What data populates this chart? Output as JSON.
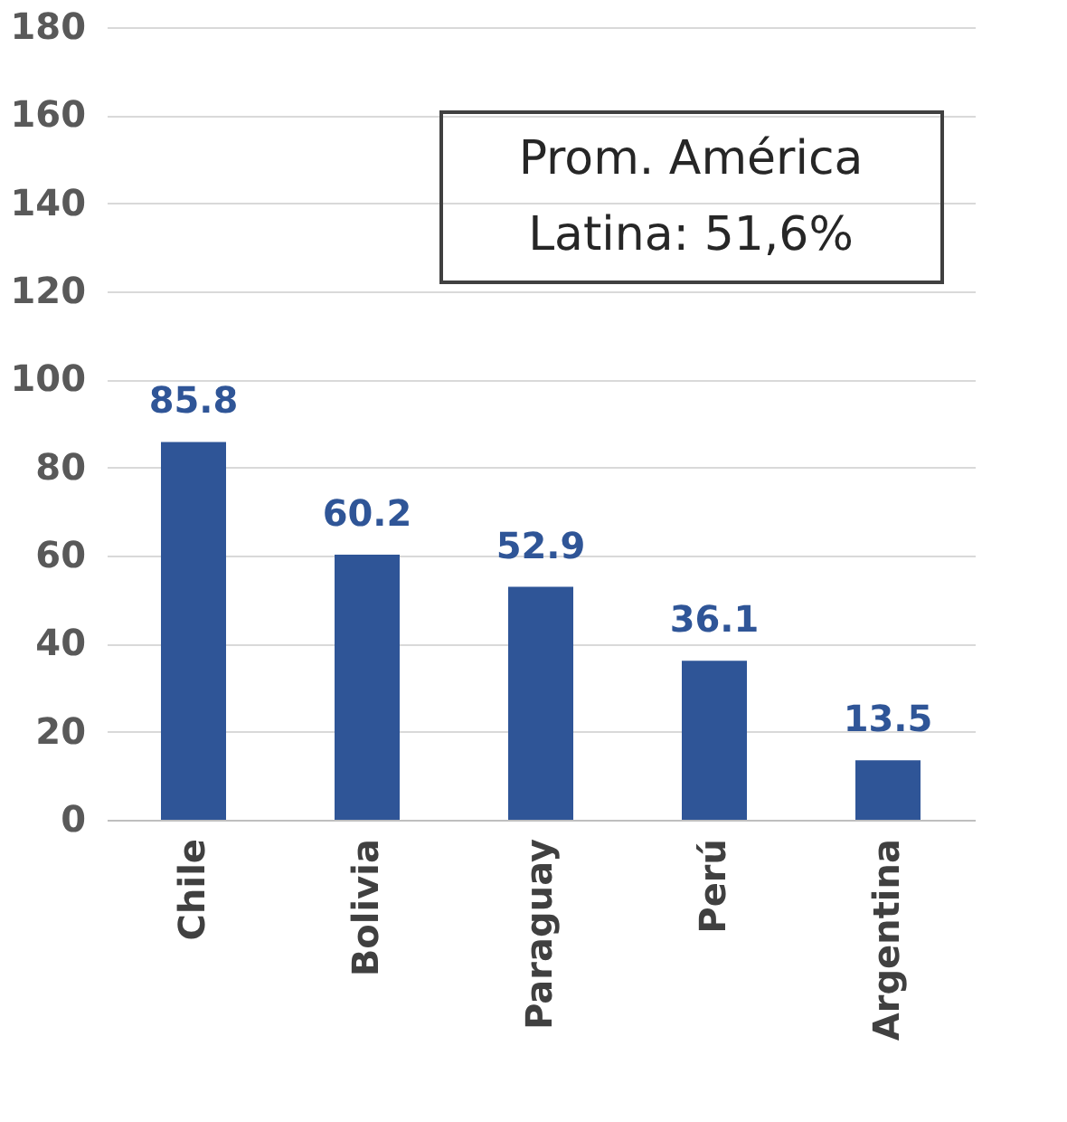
{
  "chart_data": {
    "type": "bar",
    "categories": [
      "Chile",
      "Bolivia",
      "Paraguay",
      "Perú",
      "Argentina"
    ],
    "values": [
      85.8,
      60.2,
      52.9,
      36.1,
      13.5
    ],
    "color": "#2f5597",
    "ylim": [
      0,
      180
    ],
    "yticks": [
      0,
      20,
      40,
      60,
      80,
      100,
      120,
      140,
      160,
      180
    ],
    "grid": "y",
    "data_labels": true,
    "annotations": [
      "Prom. América\nLatina: 51,6%"
    ]
  }
}
